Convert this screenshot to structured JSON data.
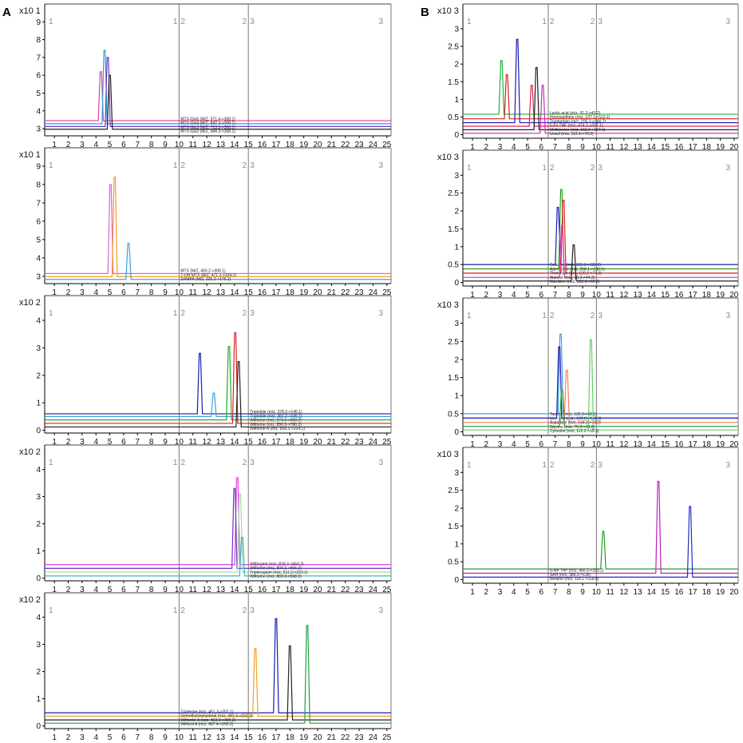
{
  "panel_labels": [
    "A",
    "B"
  ],
  "chart_data": [
    {
      "type": "line",
      "panel": "A",
      "xticks": [
        1,
        2,
        3,
        4,
        5,
        6,
        7,
        8,
        9,
        10,
        11,
        12,
        13,
        14,
        15,
        16,
        17,
        18,
        19,
        20,
        21,
        22,
        23,
        24,
        25
      ],
      "xlim": [
        0.3,
        25.3
      ],
      "ylim": [
        2.6,
        10
      ],
      "yticks": [
        3,
        4,
        5,
        6,
        7,
        8,
        9
      ],
      "y_multiplier": "x10 1",
      "segments": [
        {
          "x": 0.3,
          "labels": [
            "1"
          ]
        },
        {
          "x": 10,
          "labels": [
            "1",
            "2"
          ]
        },
        {
          "x": 15,
          "labels": [
            "2",
            "3"
          ]
        },
        {
          "x": 25.3,
          "labels": [
            "3"
          ]
        }
      ],
      "series": [
        {
          "name": "MTX-Glu5 (M/Z, 971.4->308.1)",
          "color": "#e0409a",
          "baseline": 3.45,
          "peaks": [
            {
              "x": 4.35,
              "y": 6.2
            }
          ]
        },
        {
          "name": "MTX-Glu4 (M/Z, 842.3->308.1)",
          "color": "#2a9de0",
          "baseline": 3.28,
          "peaks": [
            {
              "x": 4.62,
              "y": 7.4
            }
          ]
        },
        {
          "name": "MTX-Glu3 (M/Z, 713.3->308.1)",
          "color": "#6a35c0",
          "baseline": 3.12,
          "peaks": [
            {
              "x": 4.85,
              "y": 7.0
            }
          ]
        },
        {
          "name": "MTX-Glu2 (M/Z, 584.3->308.1)",
          "color": "#222222",
          "baseline": 2.97,
          "peaks": [
            {
              "x": 5.0,
              "y": 6.0
            }
          ]
        }
      ]
    },
    {
      "type": "line",
      "panel": "A",
      "xticks": [
        1,
        2,
        3,
        4,
        5,
        6,
        7,
        8,
        9,
        10,
        11,
        12,
        13,
        14,
        15,
        16,
        17,
        18,
        19,
        20,
        21,
        22,
        23,
        24,
        25
      ],
      "xlim": [
        0.3,
        25.3
      ],
      "ylim": [
        2.6,
        10
      ],
      "yticks": [
        3,
        4,
        5,
        6,
        7,
        8,
        9
      ],
      "y_multiplier": "x10 1",
      "segments": [
        {
          "x": 0.3,
          "labels": [
            "1"
          ]
        },
        {
          "x": 10,
          "labels": [
            "1",
            "2"
          ]
        },
        {
          "x": 15,
          "labels": [
            "2",
            "3"
          ]
        },
        {
          "x": 25.3,
          "labels": [
            "3"
          ]
        }
      ],
      "series": [
        {
          "name": "MTX (M/Z, 455.2->308.1)",
          "color": "#e060e0",
          "baseline": 3.15,
          "peaks": [
            {
              "x": 5.05,
              "y": 8.0
            }
          ]
        },
        {
          "name": "7-OH MTX (M/Z, 471.2->324.2)",
          "color": "#f0a020",
          "baseline": 2.98,
          "peaks": [
            {
              "x": 5.35,
              "y": 8.4
            }
          ]
        },
        {
          "name": "DAMPA (M/Z, 326.2->176.1)",
          "color": "#40a0e0",
          "baseline": 2.83,
          "peaks": [
            {
              "x": 6.35,
              "y": 4.8
            }
          ]
        }
      ]
    },
    {
      "type": "line",
      "panel": "A",
      "xticks": [
        1,
        2,
        3,
        4,
        5,
        6,
        7,
        8,
        9,
        10,
        11,
        12,
        13,
        14,
        15,
        16,
        17,
        18,
        19,
        20,
        21,
        22,
        23,
        24,
        25
      ],
      "xlim": [
        0.3,
        25.3
      ],
      "ylim": [
        -0.1,
        4.9
      ],
      "yticks": [
        0,
        1,
        2,
        3,
        4
      ],
      "y_multiplier": "x10 2",
      "segments": [
        {
          "x": 0.3,
          "labels": [
            "1"
          ]
        },
        {
          "x": 10,
          "labels": [
            "1",
            "2"
          ]
        },
        {
          "x": 15,
          "labels": [
            "2",
            "3"
          ]
        },
        {
          "x": 25.3,
          "labels": [
            "3"
          ]
        }
      ],
      "series": [
        {
          "name": "Triptolide (m/z, 378.2->145.1)",
          "color": "#1a1ab0",
          "baseline": 0.6,
          "peaks": [
            {
              "x": 11.5,
              "y": 2.8
            }
          ]
        },
        {
          "name": "Triptolide (m/z, 361.2->105.1)",
          "color": "#40a0e0",
          "baseline": 0.5,
          "peaks": [
            {
              "x": 12.5,
              "y": 1.35
            }
          ]
        },
        {
          "name": "Wilforine (m/z, 874.3->668.3)",
          "color": "#20b020",
          "baseline": 0.38,
          "peaks": [
            {
              "x": 13.6,
              "y": 3.05
            }
          ]
        },
        {
          "name": "Wilforine (m/z, 856.3->780.3)",
          "color": "#e02020",
          "baseline": 0.25,
          "peaks": [
            {
              "x": 14.05,
              "y": 3.55
            }
          ]
        },
        {
          "name": "Wilforine A (m/z, 858.3->204.1)",
          "color": "#222222",
          "baseline": 0.12,
          "peaks": [
            {
              "x": 14.3,
              "y": 2.5
            }
          ]
        }
      ]
    },
    {
      "type": "line",
      "panel": "A",
      "xticks": [
        1,
        2,
        3,
        4,
        5,
        6,
        7,
        8,
        9,
        10,
        11,
        12,
        13,
        14,
        15,
        16,
        17,
        18,
        19,
        20,
        21,
        22,
        23,
        24,
        25
      ],
      "xlim": [
        0.3,
        25.3
      ],
      "ylim": [
        -0.1,
        4.9
      ],
      "yticks": [
        0,
        1,
        2,
        3,
        4
      ],
      "y_multiplier": "x10 2",
      "segments": [
        {
          "x": 0.3,
          "labels": [
            "1"
          ]
        },
        {
          "x": 10,
          "labels": [
            "1",
            "2"
          ]
        },
        {
          "x": 15,
          "labels": [
            "2",
            "3"
          ]
        },
        {
          "x": 25.3,
          "labels": [
            "3"
          ]
        }
      ],
      "series": [
        {
          "name": "Wilforgine (m/z, 818.3->664.2)",
          "color": "#e040e0",
          "baseline": 0.5,
          "peaks": [
            {
              "x": 14.2,
              "y": 3.7
            }
          ]
        },
        {
          "name": "Wilforine (m/z, 804.3->656.3)",
          "color": "#6a35c0",
          "baseline": 0.36,
          "peaks": [
            {
              "x": 14.0,
              "y": 3.3
            }
          ]
        },
        {
          "name": "Tripterygium (m/z, 511.2->223.1)",
          "color": "#a0e0a0",
          "baseline": 0.22,
          "peaks": [
            {
              "x": 14.4,
              "y": 3.1
            }
          ]
        },
        {
          "name": "Wilforine (m/z, 869.3->568.3)",
          "color": "#40b0c0",
          "baseline": 0.08,
          "peaks": [
            {
              "x": 14.55,
              "y": 1.5
            }
          ]
        }
      ]
    },
    {
      "type": "line",
      "panel": "A",
      "xticks": [
        1,
        2,
        3,
        4,
        5,
        6,
        7,
        8,
        9,
        10,
        11,
        12,
        13,
        14,
        15,
        16,
        17,
        18,
        19,
        20,
        21,
        22,
        23,
        24,
        25
      ],
      "xlim": [
        0.3,
        25.3
      ],
      "ylim": [
        -0.1,
        4.9
      ],
      "yticks": [
        0,
        1,
        2,
        3,
        4
      ],
      "y_multiplier": "x10 2",
      "segments": [
        {
          "x": 0.3,
          "labels": [
            "1"
          ]
        },
        {
          "x": 10,
          "labels": [
            "1",
            "2"
          ]
        },
        {
          "x": 15,
          "labels": [
            "2",
            "3"
          ]
        },
        {
          "x": 25.3,
          "labels": [
            "3"
          ]
        }
      ],
      "series": [
        {
          "name": "Tripterine (m/z, 451.3->201.1)",
          "color": "#1a1ab0",
          "baseline": 0.48,
          "peaks": [
            {
              "x": 17.0,
              "y": 3.95
            }
          ]
        },
        {
          "name": "Demethylzeylasteral (m/z, 481.3->231.1)",
          "color": "#f0a020",
          "baseline": 0.36,
          "peaks": [
            {
              "x": 15.5,
              "y": 2.85
            }
          ]
        },
        {
          "name": "Wilfordie A (m/z, 453.3->409.2)",
          "color": "#222222",
          "baseline": 0.22,
          "peaks": [
            {
              "x": 18.0,
              "y": 2.95
            }
          ]
        },
        {
          "name": "Wilforol A (m/z, 467.4->250.2)",
          "color": "#20a040",
          "baseline": 0.1,
          "peaks": [
            {
              "x": 19.25,
              "y": 3.7
            }
          ]
        }
      ]
    },
    {
      "type": "line",
      "panel": "B",
      "xticks": [
        1,
        2,
        3,
        4,
        5,
        6,
        7,
        8,
        9,
        10,
        11,
        12,
        13,
        14,
        15,
        16,
        17,
        18,
        19,
        20
      ],
      "xlim": [
        0.3,
        20.3
      ],
      "ylim": [
        -0.1,
        3.7
      ],
      "yticks": [
        0,
        0.5,
        1,
        1.5,
        2,
        2.5,
        3
      ],
      "y_multiplier": "x10 3",
      "segments": [
        {
          "x": 0.3,
          "labels": [
            "1"
          ]
        },
        {
          "x": 6.5,
          "labels": [
            "1",
            "2"
          ]
        },
        {
          "x": 10,
          "labels": [
            "2",
            "3"
          ]
        },
        {
          "x": 20.3,
          "labels": [
            "3"
          ]
        }
      ],
      "series": [
        {
          "name": "Lactic acid (m/z, 91.2->43.2)",
          "color": "#20b040",
          "baseline": 0.58,
          "peaks": [
            {
              "x": 3.1,
              "y": 2.1
            }
          ]
        },
        {
          "name": "Hypoxanthine (m/z, 137.1->110.1)",
          "color": "#e02020",
          "baseline": 0.45,
          "peaks": [
            {
              "x": 3.5,
              "y": 1.7
            }
          ]
        },
        {
          "name": "Tryptophan (m/z, 205.2->146.2)",
          "color": "#1a1ab0",
          "baseline": 0.34,
          "peaks": [
            {
              "x": 4.25,
              "y": 2.7
            }
          ]
        },
        {
          "name": "5-Fo THF (m/z, 474.2->327.1)",
          "color": "#e02050",
          "baseline": 0.24,
          "peaks": [
            {
              "x": 5.3,
              "y": 1.4
            }
          ]
        },
        {
          "name": "Methionine (m/z, 150.2->104.1)",
          "color": "#222222",
          "baseline": 0.14,
          "peaks": [
            {
              "x": 5.65,
              "y": 1.9
            }
          ]
        },
        {
          "name": "Uracil (m/z, 113.1->70.2)",
          "color": "#c030c0",
          "baseline": 0.04,
          "peaks": [
            {
              "x": 6.1,
              "y": 1.4
            }
          ]
        }
      ]
    },
    {
      "type": "line",
      "panel": "B",
      "xticks": [
        1,
        2,
        3,
        4,
        5,
        6,
        7,
        8,
        9,
        10,
        11,
        12,
        13,
        14,
        15,
        16,
        17,
        18,
        19,
        20
      ],
      "xlim": [
        0.3,
        20.3
      ],
      "ylim": [
        -0.1,
        3.7
      ],
      "yticks": [
        0,
        0.5,
        1,
        1.5,
        2,
        2.5,
        3
      ],
      "y_multiplier": "x10 3",
      "segments": [
        {
          "x": 0.3,
          "labels": [
            "1"
          ]
        },
        {
          "x": 6.5,
          "labels": [
            "1",
            "2"
          ]
        },
        {
          "x": 10,
          "labels": [
            "2",
            "3"
          ]
        },
        {
          "x": 20.3,
          "labels": [
            "3"
          ]
        }
      ],
      "series": [
        {
          "name": "Guanine (m/z, 152.3->135.2)",
          "color": "#1a1ab0",
          "baseline": 0.5,
          "peaks": [
            {
              "x": 7.2,
              "y": 2.1
            }
          ]
        },
        {
          "name": "Adenosine (m/z, 268.1->136.1)",
          "color": "#20a020",
          "baseline": 0.38,
          "peaks": [
            {
              "x": 7.45,
              "y": 2.6
            }
          ]
        },
        {
          "name": "Threonine (m/z, 120.2->74.3)",
          "color": "#e02020",
          "baseline": 0.26,
          "peaks": [
            {
              "x": 7.6,
              "y": 2.3
            }
          ]
        },
        {
          "name": "Alanine (m/z, 90.3->44.3)",
          "color": "#e040c0",
          "baseline": 0.14,
          "peaks": [
            {
              "x": 7.5,
              "y": 1.6
            }
          ]
        },
        {
          "name": "Carnitine (m/z, 162.3->60.3)",
          "color": "#222222",
          "baseline": 0.04,
          "peaks": [
            {
              "x": 8.35,
              "y": 1.05
            }
          ]
        }
      ]
    },
    {
      "type": "line",
      "panel": "B",
      "xticks": [
        1,
        2,
        3,
        4,
        5,
        6,
        7,
        8,
        9,
        10,
        11,
        12,
        13,
        14,
        15,
        16,
        17,
        18,
        19,
        20
      ],
      "xlim": [
        0.3,
        20.3
      ],
      "ylim": [
        -0.1,
        3.7
      ],
      "yticks": [
        0,
        0.5,
        1,
        1.5,
        2,
        2.5,
        3
      ],
      "y_multiplier": "x10 3",
      "segments": [
        {
          "x": 0.3,
          "labels": [
            "1"
          ]
        },
        {
          "x": 6.5,
          "labels": [
            "1",
            "2"
          ]
        },
        {
          "x": 10,
          "labels": [
            "2",
            "3"
          ]
        },
        {
          "x": 20.3,
          "labels": [
            "3"
          ]
        }
      ],
      "series": [
        {
          "name": "Taurine (m/z, 126.3->80.1)",
          "color": "#40a0e0",
          "baseline": 0.5,
          "peaks": [
            {
              "x": 7.4,
              "y": 2.7
            }
          ]
        },
        {
          "name": "Uric acid (m/z, 169.2->141.3)",
          "color": "#1a1ab0",
          "baseline": 0.38,
          "peaks": [
            {
              "x": 7.3,
              "y": 2.35
            }
          ]
        },
        {
          "name": "Aspartate (m/z, 134.2->74.2)",
          "color": "#f08060",
          "baseline": 0.26,
          "peaks": [
            {
              "x": 7.85,
              "y": 1.7
            }
          ]
        },
        {
          "name": "Glycine (m/z, 76.2->30.2)",
          "color": "#20a040",
          "baseline": 0.15,
          "peaks": [
            {
              "x": 7.5,
              "y": 1.15
            }
          ]
        },
        {
          "name": "Cytosine (m/z, 112.2->95.3)",
          "color": "#60d060",
          "baseline": 0.05,
          "peaks": [
            {
              "x": 9.6,
              "y": 2.55
            }
          ]
        }
      ]
    },
    {
      "type": "line",
      "panel": "B",
      "xticks": [
        1,
        2,
        3,
        4,
        5,
        6,
        7,
        8,
        9,
        10,
        11,
        12,
        13,
        14,
        15,
        16,
        17,
        18,
        19,
        20
      ],
      "xlim": [
        0.3,
        20.3
      ],
      "ylim": [
        -0.1,
        3.7
      ],
      "yticks": [
        0,
        0.5,
        1,
        1.5,
        2,
        2.5,
        3
      ],
      "y_multiplier": "x10 3",
      "segments": [
        {
          "x": 0.3,
          "labels": [
            "1"
          ]
        },
        {
          "x": 6.5,
          "labels": [
            "1",
            "2"
          ]
        },
        {
          "x": 10,
          "labels": [
            "2",
            "3"
          ]
        },
        {
          "x": 20.3,
          "labels": [
            "3"
          ]
        }
      ],
      "series": [
        {
          "name": "5-Me THF (m/z, 460.3->313.2)",
          "color": "#20a020",
          "baseline": 0.3,
          "peaks": [
            {
              "x": 10.5,
              "y": 1.35
            }
          ]
        },
        {
          "name": "SAH (m/z, 385.2->136)",
          "color": "#c020c0",
          "baseline": 0.18,
          "peaks": [
            {
              "x": 14.5,
              "y": 2.75
            }
          ]
        },
        {
          "name": "Betaine (m/z, 118.1->118.0)",
          "color": "#2030c0",
          "baseline": 0.07,
          "peaks": [
            {
              "x": 16.8,
              "y": 2.05
            }
          ]
        }
      ]
    }
  ]
}
